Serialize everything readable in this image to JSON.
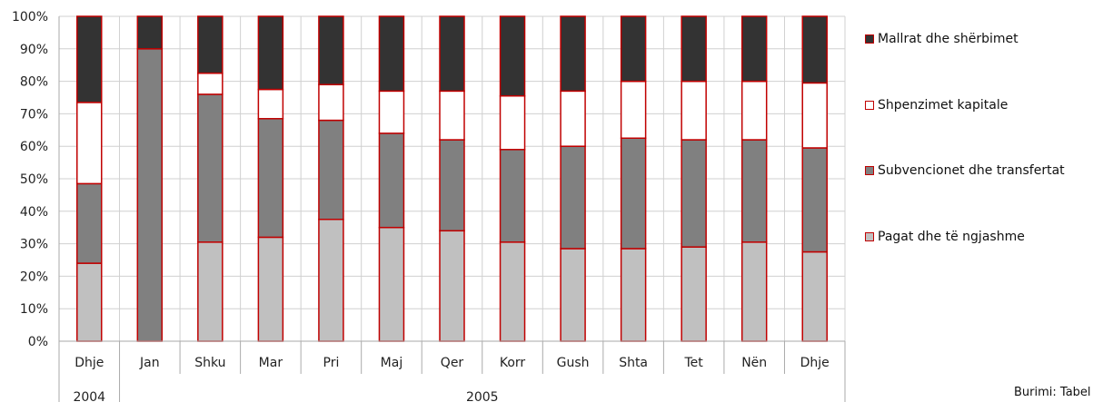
{
  "chart_data": {
    "type": "bar",
    "stacked": "percent",
    "categories": [
      "Dhje",
      "Jan",
      "Shku",
      "Mar",
      "Pri",
      "Maj",
      "Qer",
      "Korr",
      "Gush",
      "Shta",
      "Tet",
      "Nën",
      "Dhje"
    ],
    "year_groups": [
      {
        "label": "2004",
        "categories": 1
      },
      {
        "label": "2005",
        "categories": 12
      }
    ],
    "y_ticks": [
      "0%",
      "10%",
      "20%",
      "30%",
      "40%",
      "50%",
      "60%",
      "70%",
      "80%",
      "90%",
      "100%"
    ],
    "ylim": [
      0,
      100
    ],
    "grid": true,
    "legend_position": "right",
    "series": [
      {
        "name": "Pagat dhe të ngjashme",
        "color": "#c0c0c0",
        "values": [
          24,
          0,
          30.5,
          32,
          37.5,
          35,
          34,
          30.5,
          28.5,
          28.5,
          29,
          30.5,
          27.5
        ]
      },
      {
        "name": "Subvencionet dhe transfertat",
        "color": "#808080",
        "values": [
          24.5,
          90,
          45.5,
          36.5,
          30.5,
          29,
          28,
          28.5,
          31.5,
          34,
          33,
          31.5,
          32
        ]
      },
      {
        "name": "Shpenzimet kapitale",
        "color": "#ffffff",
        "values": [
          25,
          0,
          6.5,
          9,
          11,
          13,
          15,
          16.5,
          17,
          17.5,
          18,
          18,
          20
        ]
      },
      {
        "name": "Mallrat dhe shërbimet",
        "color": "#333333",
        "values": [
          26.5,
          10,
          17.5,
          22.5,
          21,
          23,
          23,
          24.5,
          23,
          20,
          20,
          20,
          20.5
        ]
      }
    ],
    "bar_border_color": "#c00000",
    "source_text": "Burimi: Tabel"
  }
}
